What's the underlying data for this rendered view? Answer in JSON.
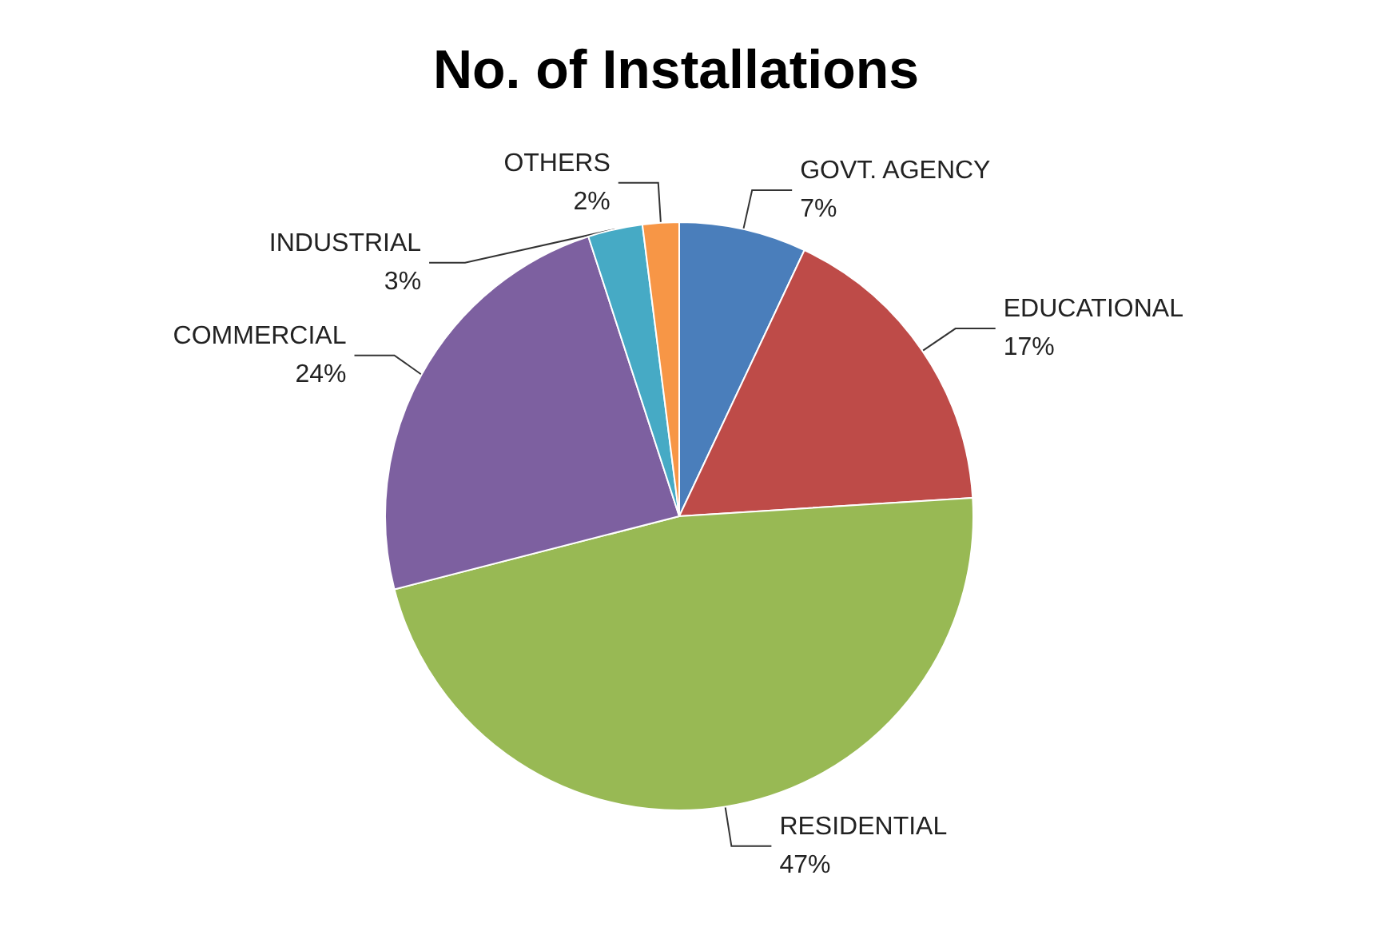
{
  "chart_data": {
    "type": "pie",
    "title": "No. of Installations",
    "categories": [
      "GOVT. AGENCY",
      "EDUCATIONAL",
      "RESIDENTIAL",
      "COMMERCIAL",
      "INDUSTRIAL",
      "OTHERS"
    ],
    "values": [
      7,
      17,
      47,
      24,
      3,
      2
    ],
    "value_labels": [
      "7%",
      "17%",
      "47%",
      "24%",
      "3%",
      "2%"
    ],
    "colors": [
      "#4a7ebb",
      "#be4b48",
      "#98b954",
      "#7d60a0",
      "#46aac5",
      "#f79646"
    ]
  }
}
